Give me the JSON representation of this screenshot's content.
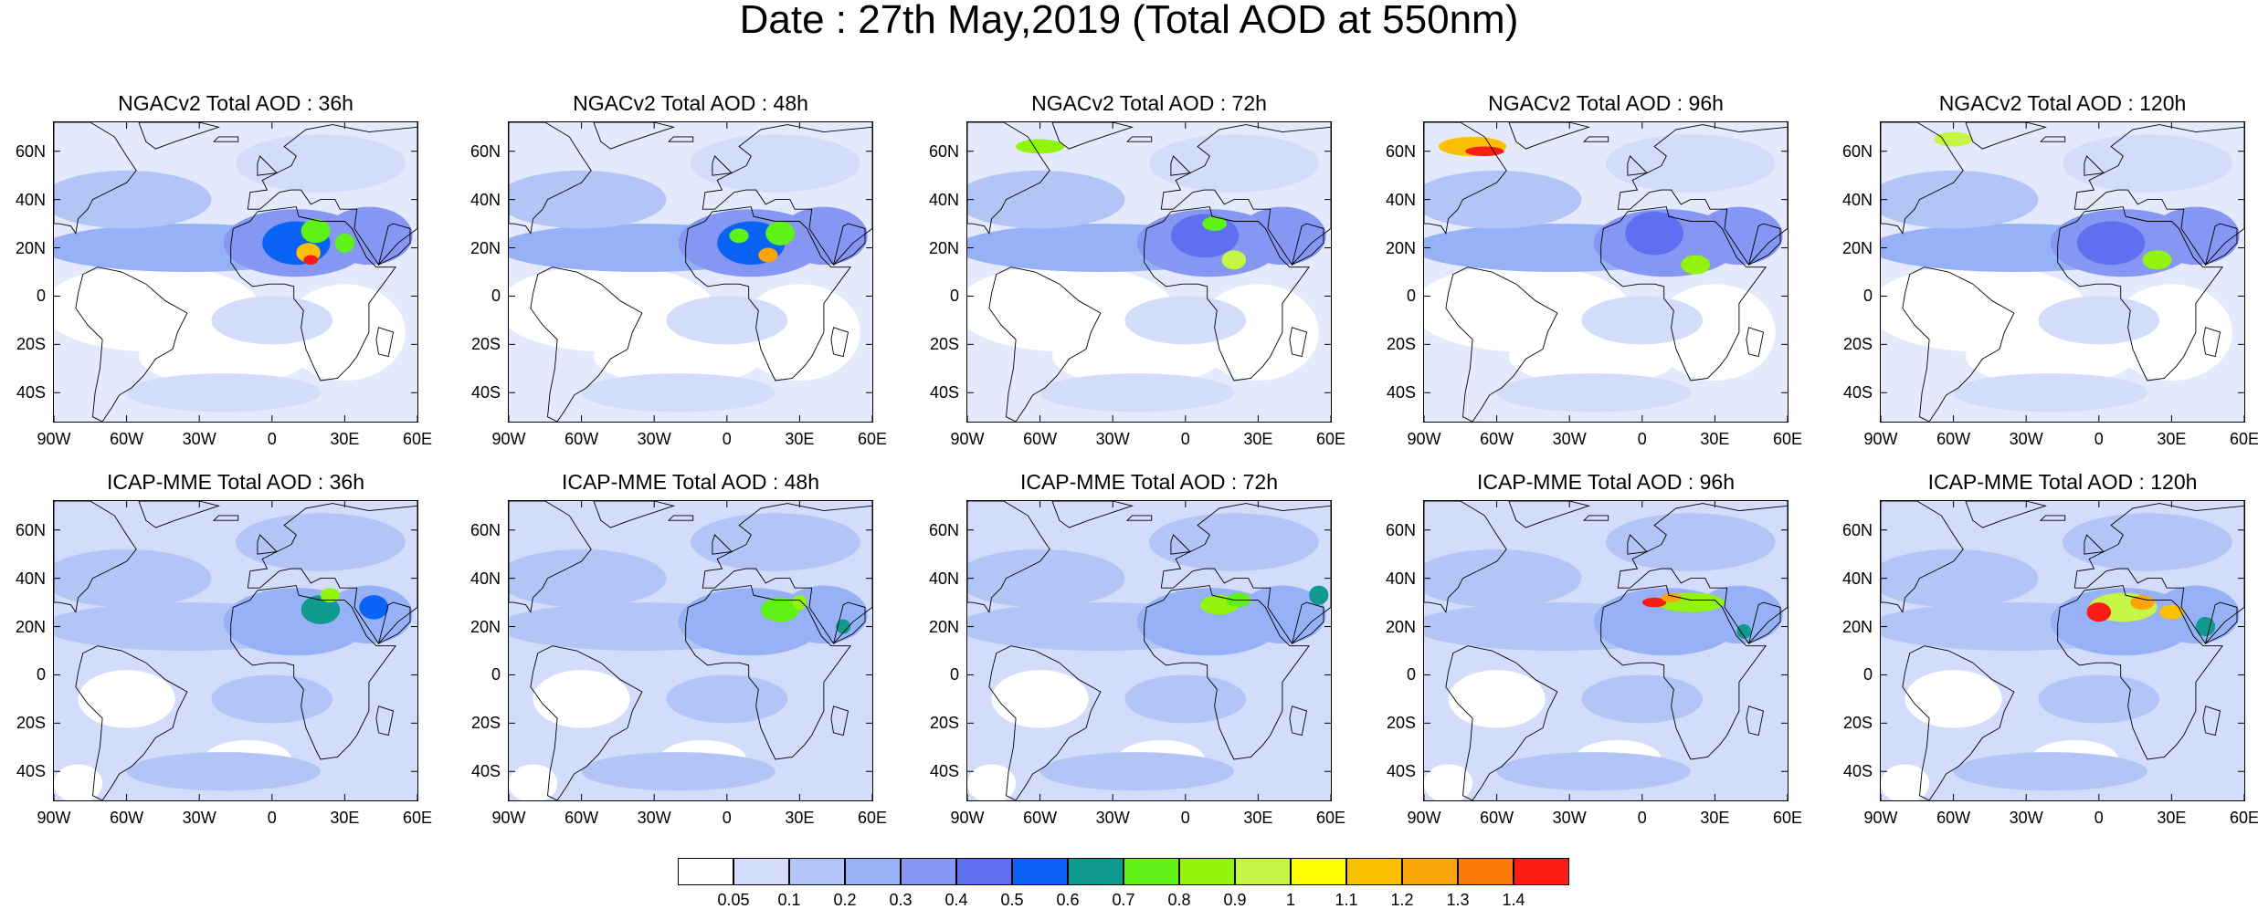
{
  "title": "Date : 27th May,2019 (Total AOD at 550nm)",
  "lat_ticks": [
    "60N",
    "40N",
    "20N",
    "0",
    "20S",
    "40S"
  ],
  "lon_ticks": [
    "90W",
    "60W",
    "30W",
    "0",
    "30E",
    "60E"
  ],
  "colors": {
    "background": "#ffffff",
    "ocean_low": "#d3dcfa",
    "land_low": "#bfcdf8",
    "outline": "#000000"
  },
  "rows": [
    {
      "model": "NGACv2",
      "panels": [
        {
          "title": "NGACv2 Total AOD : 36h"
        },
        {
          "title": "NGACv2 Total AOD : 48h"
        },
        {
          "title": "NGACv2 Total AOD : 72h"
        },
        {
          "title": "NGACv2 Total AOD : 96h"
        },
        {
          "title": "NGACv2 Total AOD : 120h"
        }
      ]
    },
    {
      "model": "ICAP-MME",
      "panels": [
        {
          "title": "ICAP-MME Total AOD : 36h"
        },
        {
          "title": "ICAP-MME Total AOD : 48h"
        },
        {
          "title": "ICAP-MME Total AOD : 72h"
        },
        {
          "title": "ICAP-MME Total AOD : 96h"
        },
        {
          "title": "ICAP-MME Total AOD : 120h"
        }
      ]
    }
  ],
  "colorbar": {
    "colors": [
      "#ffffff",
      "#d3dcfa",
      "#b3c4f6",
      "#96b1f5",
      "#8596f3",
      "#5f6ff0",
      "#0b63f5",
      "#0f9a90",
      "#5ff216",
      "#92f30c",
      "#c5f545",
      "#fdfe02",
      "#fbc004",
      "#fba30a",
      "#fb7908",
      "#fb1c14"
    ],
    "labels": [
      "0.05",
      "0.1",
      "0.2",
      "0.3",
      "0.4",
      "0.5",
      "0.6",
      "0.7",
      "0.8",
      "0.9",
      "1",
      "1.1",
      "1.2",
      "1.3",
      "1.4"
    ]
  }
}
